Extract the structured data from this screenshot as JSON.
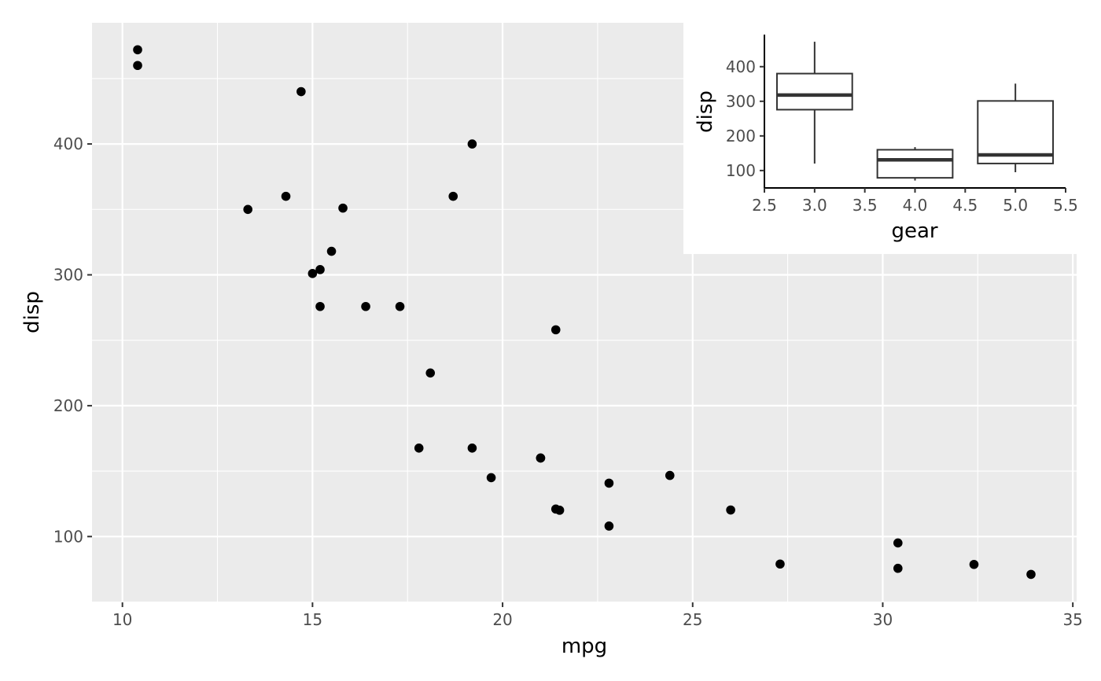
{
  "colors": {
    "panel_background": "#ebebeb",
    "grid_major": "#ffffff",
    "point": "#000000",
    "box_stroke": "#333333",
    "inset_background": "#ffffff"
  },
  "chart_data": [
    {
      "type": "scatter",
      "xlabel": "mpg",
      "ylabel": "disp",
      "xlim": [
        9.2,
        35.1
      ],
      "ylim": [
        49.7,
        492.6
      ],
      "x_ticks": [
        10,
        15,
        20,
        25,
        30,
        35
      ],
      "y_ticks": [
        100,
        200,
        300,
        400
      ],
      "grid": true,
      "points": [
        {
          "x": 21.0,
          "y": 160
        },
        {
          "x": 21.0,
          "y": 160
        },
        {
          "x": 22.8,
          "y": 108
        },
        {
          "x": 21.4,
          "y": 258
        },
        {
          "x": 18.7,
          "y": 360
        },
        {
          "x": 18.1,
          "y": 225
        },
        {
          "x": 14.3,
          "y": 360
        },
        {
          "x": 24.4,
          "y": 146.7
        },
        {
          "x": 22.8,
          "y": 140.8
        },
        {
          "x": 19.2,
          "y": 167.6
        },
        {
          "x": 17.8,
          "y": 167.6
        },
        {
          "x": 16.4,
          "y": 275.8
        },
        {
          "x": 17.3,
          "y": 275.8
        },
        {
          "x": 15.2,
          "y": 275.8
        },
        {
          "x": 10.4,
          "y": 472
        },
        {
          "x": 10.4,
          "y": 460
        },
        {
          "x": 14.7,
          "y": 440
        },
        {
          "x": 32.4,
          "y": 78.7
        },
        {
          "x": 30.4,
          "y": 75.7
        },
        {
          "x": 33.9,
          "y": 71.1
        },
        {
          "x": 21.5,
          "y": 120.1
        },
        {
          "x": 15.5,
          "y": 318
        },
        {
          "x": 15.2,
          "y": 304
        },
        {
          "x": 13.3,
          "y": 350
        },
        {
          "x": 19.2,
          "y": 400
        },
        {
          "x": 27.3,
          "y": 79
        },
        {
          "x": 26.0,
          "y": 120.3
        },
        {
          "x": 30.4,
          "y": 95.1
        },
        {
          "x": 15.8,
          "y": 351
        },
        {
          "x": 19.7,
          "y": 145
        },
        {
          "x": 15.0,
          "y": 301
        },
        {
          "x": 21.4,
          "y": 121
        }
      ]
    },
    {
      "type": "box",
      "xlabel": "gear",
      "ylabel": "disp",
      "xlim": [
        2.5,
        5.5
      ],
      "ylim": [
        49.7,
        492.6
      ],
      "x_ticks": [
        "2.5",
        "3.0",
        "3.5",
        "4.0",
        "4.5",
        "5.0",
        "5.5"
      ],
      "y_ticks": [
        100,
        200,
        300,
        400
      ],
      "boxes": [
        {
          "x": 3,
          "min": 120.1,
          "q1": 275.8,
          "median": 318,
          "q3": 380,
          "max": 472
        },
        {
          "x": 4,
          "min": 71.1,
          "q1": 78.9,
          "median": 130.9,
          "q3": 160,
          "max": 167.6
        },
        {
          "x": 5,
          "min": 95.1,
          "q1": 120.3,
          "median": 145,
          "q3": 301,
          "max": 351
        }
      ]
    }
  ]
}
